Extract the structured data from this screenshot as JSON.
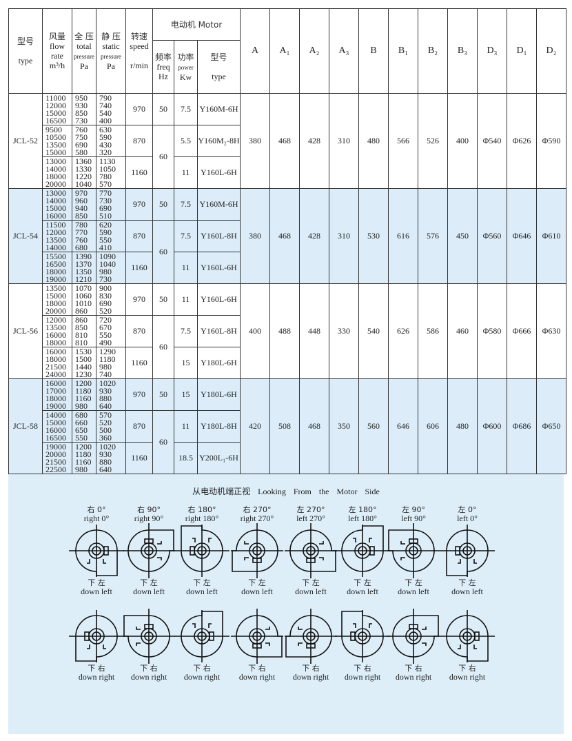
{
  "header": {
    "type_cn": "型号",
    "type_en": "type",
    "flow_cn": "风量",
    "flow_en1": "flow",
    "flow_en2": "rate",
    "flow_unit": "m³/h",
    "total_cn": "全 压",
    "total_en1": "total",
    "total_en2": "pressure",
    "total_unit": "Pa",
    "static_cn": "静 压",
    "static_en1": "static",
    "static_en2": "pressure",
    "static_unit": "Pa",
    "speed_cn": "转速",
    "speed_en": "speed",
    "speed_unit": "r/min",
    "motor": "电动机 Motor",
    "freq_cn": "频率",
    "freq_en": "freq",
    "freq_unit": "Hz",
    "power_cn": "功率",
    "power_en": "power",
    "power_unit": "Kw",
    "mtype_cn": "型号",
    "mtype_en": "type",
    "dims": [
      "A",
      "A₁",
      "A₂",
      "A₃",
      "B",
      "B₁",
      "B₂",
      "B₃",
      "D₃",
      "D₁",
      "D₂"
    ]
  },
  "models": [
    {
      "name": "JCL-52",
      "dims": [
        "380",
        "468",
        "428",
        "310",
        "480",
        "566",
        "526",
        "400",
        "Φ540",
        "Φ626",
        "Φ590"
      ],
      "groups": [
        {
          "flow": [
            "11000",
            "12000",
            "15000",
            "16500"
          ],
          "total": [
            "950",
            "930",
            "850",
            "730"
          ],
          "static": [
            "790",
            "740",
            "540",
            "400"
          ],
          "speed": "970",
          "freq": "50",
          "power": "7.5",
          "motor": "Y160M-6H"
        },
        {
          "flow": [
            "9500",
            "10500",
            "13500",
            "15000"
          ],
          "total": [
            "760",
            "750",
            "690",
            "580"
          ],
          "static": [
            "630",
            "590",
            "430",
            "320"
          ],
          "speed": "870",
          "freq": "60",
          "power": "5.5",
          "motor": "Y160M₂-8H"
        },
        {
          "flow": [
            "13000",
            "14000",
            "18000",
            "20000"
          ],
          "total": [
            "1360",
            "1330",
            "1220",
            "1040"
          ],
          "static": [
            "1130",
            "1050",
            "780",
            "570"
          ],
          "speed": "1160",
          "power": "11",
          "motor": "Y160L-6H"
        }
      ]
    },
    {
      "name": "JCL-54",
      "dims": [
        "380",
        "468",
        "428",
        "310",
        "530",
        "616",
        "576",
        "450",
        "Φ560",
        "Φ646",
        "Φ610"
      ],
      "groups": [
        {
          "flow": [
            "13000",
            "14000",
            "15000",
            "16000"
          ],
          "total": [
            "970",
            "960",
            "940",
            "850"
          ],
          "static": [
            "770",
            "730",
            "690",
            "510"
          ],
          "speed": "970",
          "freq": "50",
          "power": "7.5",
          "motor": "Y160M-6H"
        },
        {
          "flow": [
            "11500",
            "12000",
            "13500",
            "14000"
          ],
          "total": [
            "780",
            "770",
            "760",
            "680"
          ],
          "static": [
            "620",
            "590",
            "550",
            "410"
          ],
          "speed": "870",
          "freq": "60",
          "power": "7.5",
          "motor": "Y160L-8H"
        },
        {
          "flow": [
            "15500",
            "16500",
            "18000",
            "19000"
          ],
          "total": [
            "1390",
            "1370",
            "1350",
            "1210"
          ],
          "static": [
            "1090",
            "1040",
            "980",
            "730"
          ],
          "speed": "1160",
          "power": "11",
          "motor": "Y160L-6H"
        }
      ]
    },
    {
      "name": "JCL-56",
      "dims": [
        "400",
        "488",
        "448",
        "330",
        "540",
        "626",
        "586",
        "460",
        "Φ580",
        "Φ666",
        "Φ630"
      ],
      "groups": [
        {
          "flow": [
            "13500",
            "15000",
            "18000",
            "20000"
          ],
          "total": [
            "1070",
            "1060",
            "1010",
            "860"
          ],
          "static": [
            "900",
            "830",
            "690",
            "520"
          ],
          "speed": "970",
          "freq": "50",
          "power": "11",
          "motor": "Y160L-6H"
        },
        {
          "flow": [
            "12000",
            "13500",
            "16000",
            "18000"
          ],
          "total": [
            "860",
            "850",
            "810",
            "810"
          ],
          "static": [
            "720",
            "670",
            "550",
            "490"
          ],
          "speed": "870",
          "freq": "60",
          "power": "7.5",
          "motor": "Y160L-8H"
        },
        {
          "flow": [
            "16000",
            "18000",
            "21500",
            "24000"
          ],
          "total": [
            "1530",
            "1500",
            "1440",
            "1230"
          ],
          "static": [
            "1290",
            "1180",
            "980",
            "740"
          ],
          "speed": "1160",
          "power": "15",
          "motor": "Y180L-6H"
        }
      ]
    },
    {
      "name": "JCL-58",
      "dims": [
        "420",
        "508",
        "468",
        "350",
        "560",
        "646",
        "606",
        "480",
        "Φ600",
        "Φ686",
        "Φ650"
      ],
      "groups": [
        {
          "flow": [
            "16000",
            "17000",
            "18000",
            "19000"
          ],
          "total": [
            "1200",
            "1180",
            "1160",
            "980"
          ],
          "static": [
            "1020",
            "930",
            "880",
            "640"
          ],
          "speed": "970",
          "freq": "50",
          "power": "15",
          "motor": "Y180L-6H"
        },
        {
          "flow": [
            "14000",
            "15000",
            "16000",
            "16500"
          ],
          "total": [
            "680",
            "660",
            "650",
            "550"
          ],
          "static": [
            "570",
            "520",
            "500",
            "360"
          ],
          "speed": "870",
          "freq": "60",
          "power": "11",
          "motor": "Y180L-8H"
        },
        {
          "flow": [
            "19000",
            "20000",
            "21500",
            "22500"
          ],
          "total": [
            "1200",
            "1180",
            "1160",
            "980"
          ],
          "static": [
            "1020",
            "930",
            "880",
            "640"
          ],
          "speed": "1160",
          "power": "18.5",
          "motor": "Y200L₁-6H"
        }
      ]
    }
  ],
  "diagram": {
    "title": "从电动机端正视   Looking  From  the  Motor  Side",
    "orientations": [
      {
        "cn": "右  0°",
        "en": "right 0°"
      },
      {
        "cn": "右  90°",
        "en": "right 90°"
      },
      {
        "cn": "右  180°",
        "en": "right 180°"
      },
      {
        "cn": "右  270°",
        "en": "right 270°"
      },
      {
        "cn": "左  270°",
        "en": "left 270°"
      },
      {
        "cn": "左  180°",
        "en": "left 180°"
      },
      {
        "cn": "左  90°",
        "en": "left 90°"
      },
      {
        "cn": "左  0°",
        "en": "left 0°"
      }
    ],
    "row1_cn": "下 左",
    "row1_en": "down left",
    "row2_cn": "下 右",
    "row2_en": "down right"
  }
}
